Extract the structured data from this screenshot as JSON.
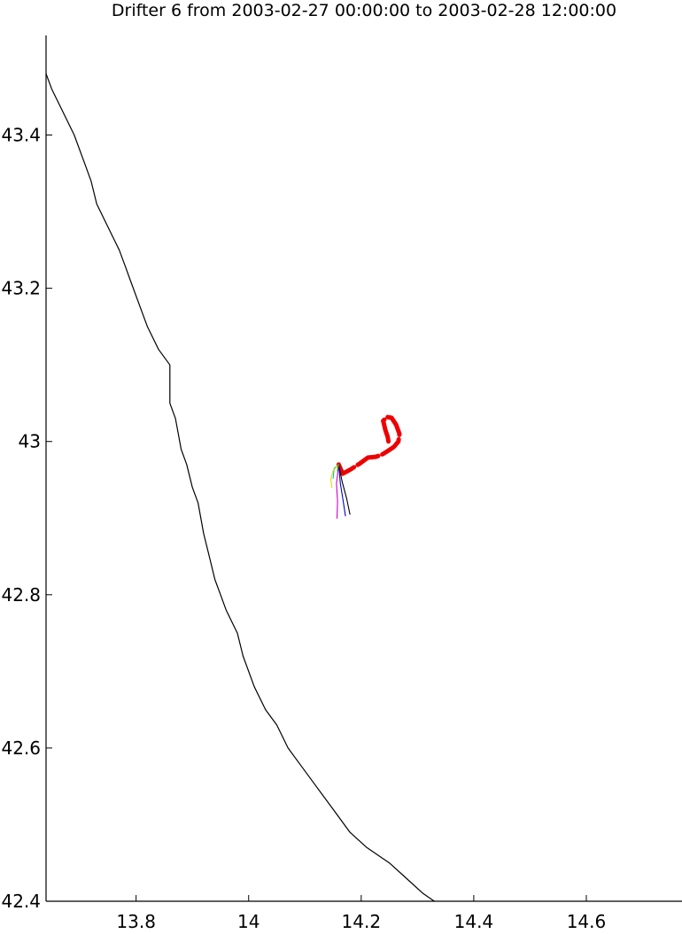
{
  "chart_data": {
    "type": "line",
    "title": "Drifter 6 from 2003-02-27 00:00:00 to 2003-02-28 12:00:00",
    "xlabel": "",
    "ylabel": "",
    "xlim": [
      13.64,
      14.77
    ],
    "ylim": [
      42.4,
      43.53
    ],
    "xticks": [
      13.8,
      14.0,
      14.2,
      14.4,
      14.6
    ],
    "xtick_labels": [
      "13.8",
      "14",
      "14.2",
      "14.4",
      "14.6"
    ],
    "yticks": [
      42.4,
      42.6,
      42.8,
      43.0,
      43.2,
      43.4
    ],
    "ytick_labels": [
      "42.4",
      "42.6",
      "42.8",
      "43",
      "43.2",
      "43.4"
    ],
    "grid": false,
    "series": [
      {
        "color": "#000000",
        "role": "coastline",
        "points": [
          [
            13.64,
            43.48
          ],
          [
            13.65,
            43.46
          ],
          [
            13.67,
            43.43
          ],
          [
            13.69,
            43.4
          ],
          [
            13.71,
            43.36
          ],
          [
            13.72,
            43.34
          ],
          [
            13.73,
            43.31
          ],
          [
            13.75,
            43.28
          ],
          [
            13.77,
            43.25
          ],
          [
            13.78,
            43.23
          ],
          [
            13.79,
            43.21
          ],
          [
            13.81,
            43.17
          ],
          [
            13.82,
            43.15
          ],
          [
            13.84,
            43.12
          ],
          [
            13.86,
            43.1
          ],
          [
            13.86,
            43.05
          ],
          [
            13.87,
            43.03
          ],
          [
            13.88,
            42.99
          ],
          [
            13.89,
            42.97
          ],
          [
            13.9,
            42.94
          ],
          [
            13.91,
            42.92
          ],
          [
            13.92,
            42.88
          ],
          [
            13.93,
            42.85
          ],
          [
            13.94,
            42.82
          ],
          [
            13.95,
            42.8
          ],
          [
            13.96,
            42.78
          ],
          [
            13.98,
            42.75
          ],
          [
            13.99,
            42.72
          ],
          [
            14.01,
            42.68
          ],
          [
            14.03,
            42.65
          ],
          [
            14.05,
            42.63
          ],
          [
            14.07,
            42.6
          ],
          [
            14.09,
            42.58
          ],
          [
            14.12,
            42.55
          ],
          [
            14.15,
            42.52
          ],
          [
            14.18,
            42.49
          ],
          [
            14.21,
            42.47
          ],
          [
            14.25,
            42.45
          ],
          [
            14.28,
            42.43
          ],
          [
            14.31,
            42.41
          ],
          [
            14.33,
            42.4
          ]
        ]
      },
      {
        "color": "#ee0000",
        "role": "drifter-track",
        "points": [
          [
            14.16,
            42.97
          ],
          [
            14.167,
            42.958
          ],
          [
            14.18,
            42.963
          ],
          [
            14.197,
            42.971
          ],
          [
            14.212,
            42.979
          ],
          [
            14.226,
            42.98
          ],
          [
            14.237,
            42.983
          ],
          [
            14.248,
            42.988
          ],
          [
            14.258,
            42.993
          ],
          [
            14.266,
            43.0
          ],
          [
            14.268,
            43.01
          ],
          [
            14.262,
            43.022
          ],
          [
            14.254,
            43.031
          ],
          [
            14.246,
            43.032
          ],
          [
            14.239,
            43.027
          ],
          [
            14.243,
            43.015
          ],
          [
            14.247,
            43.006
          ],
          [
            14.249,
            42.997
          ]
        ]
      },
      {
        "color": "#000000",
        "role": "forecast-track",
        "points": [
          [
            14.16,
            42.97
          ],
          [
            14.166,
            42.948
          ],
          [
            14.174,
            42.926
          ],
          [
            14.18,
            42.905
          ]
        ]
      },
      {
        "color": "#0000cc",
        "role": "forecast-track",
        "points": [
          [
            14.16,
            42.97
          ],
          [
            14.163,
            42.945
          ],
          [
            14.168,
            42.922
          ],
          [
            14.172,
            42.903
          ]
        ]
      },
      {
        "color": "#cc00cc",
        "role": "forecast-track",
        "points": [
          [
            14.16,
            42.97
          ],
          [
            14.156,
            42.945
          ],
          [
            14.158,
            42.922
          ],
          [
            14.157,
            42.9
          ]
        ]
      },
      {
        "color": "#00bfbf",
        "role": "forecast-track",
        "points": [
          [
            14.16,
            42.97
          ],
          [
            14.152,
            42.965
          ],
          [
            14.15,
            42.952
          ]
        ]
      },
      {
        "color": "#e6d800",
        "role": "forecast-track",
        "points": [
          [
            14.16,
            42.97
          ],
          [
            14.15,
            42.962
          ],
          [
            14.146,
            42.95
          ],
          [
            14.148,
            42.94
          ]
        ]
      },
      {
        "color": "#00a000",
        "role": "forecast-track",
        "points": [
          [
            14.16,
            42.97
          ],
          [
            14.158,
            42.962
          ]
        ]
      }
    ]
  }
}
